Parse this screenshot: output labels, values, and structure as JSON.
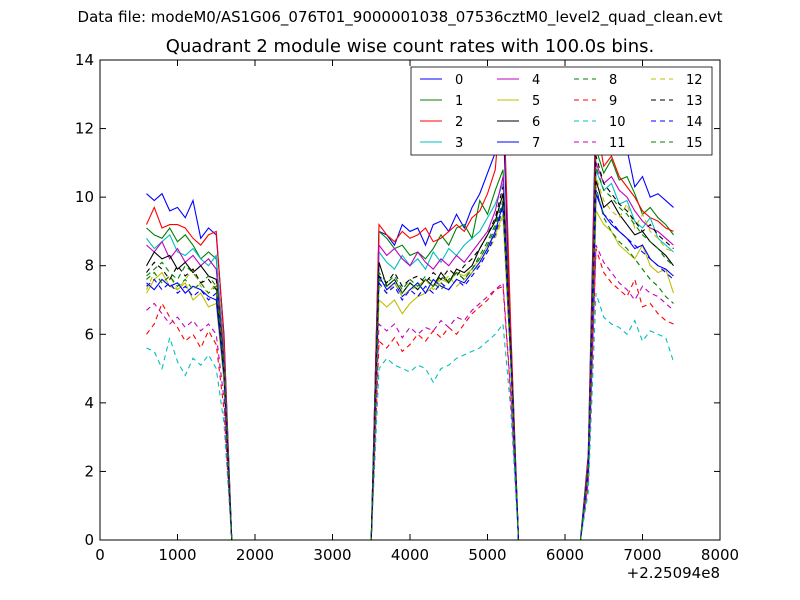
{
  "figure": {
    "suptitle": "Data file: modeM0/AS1G06_076T01_9000001038_07536cztM0_level2_quad_clean.evt",
    "title": "Quadrant 2 module wise count rates with 100.0s bins.",
    "x_offset_label": "+2.25094e8"
  },
  "chart_data": {
    "type": "line",
    "title": "Quadrant 2 module wise count rates with 100.0s bins.",
    "xlabel": "",
    "ylabel": "",
    "xlim": [
      0,
      8000
    ],
    "ylim": [
      0,
      14
    ],
    "xticks": [
      0,
      1000,
      2000,
      3000,
      4000,
      5000,
      6000,
      7000,
      8000
    ],
    "yticks": [
      0,
      2,
      4,
      6,
      8,
      10,
      12,
      14
    ],
    "grid": false,
    "legend": "top-right",
    "x": [
      600,
      700,
      800,
      900,
      1000,
      1100,
      1200,
      1300,
      1400,
      1500,
      1600,
      1700,
      1800,
      1900,
      2000,
      2100,
      2200,
      2300,
      2400,
      2500,
      2600,
      2700,
      2800,
      2900,
      3000,
      3100,
      3200,
      3300,
      3400,
      3500,
      3600,
      3700,
      3800,
      3900,
      4000,
      4100,
      4200,
      4300,
      4400,
      4500,
      4600,
      4700,
      4800,
      4900,
      5000,
      5100,
      5200,
      5300,
      5400,
      5500,
      5600,
      5700,
      5800,
      5900,
      6000,
      6100,
      6200,
      6300,
      6400,
      6500,
      6600,
      6700,
      6800,
      6900,
      7000,
      7100,
      7200,
      7300,
      7400
    ],
    "series": [
      {
        "name": "0",
        "color": "#0000ff",
        "dash": "solid",
        "values": [
          10.1,
          9.9,
          10.1,
          9.6,
          9.7,
          9.4,
          9.9,
          8.8,
          9.1,
          8.9,
          6.0,
          0,
          0,
          0,
          0,
          0,
          0,
          0,
          0,
          0,
          0,
          0,
          0,
          0,
          0,
          0,
          0,
          0,
          0,
          0,
          9.0,
          8.9,
          8.6,
          9.2,
          9.0,
          9.1,
          8.6,
          9.2,
          9.3,
          9.0,
          9.5,
          9.1,
          9.7,
          10.1,
          10.7,
          11.3,
          12.4,
          6.0,
          0,
          0,
          0,
          0,
          0,
          0,
          0,
          0,
          0,
          2.5,
          12.9,
          11.3,
          11.6,
          11.4,
          11.4,
          10.3,
          10.6,
          10.0,
          10.1,
          9.9,
          9.7
        ]
      },
      {
        "name": "1",
        "color": "#008000",
        "dash": "solid",
        "values": [
          9.1,
          8.9,
          8.8,
          9.1,
          8.7,
          8.9,
          8.6,
          8.2,
          8.4,
          8.2,
          5.5,
          0,
          0,
          0,
          0,
          0,
          0,
          0,
          0,
          0,
          0,
          0,
          0,
          0,
          0,
          0,
          0,
          0,
          0,
          0,
          9.0,
          8.8,
          8.5,
          8.6,
          8.3,
          8.4,
          8.2,
          8.5,
          8.9,
          8.6,
          9.1,
          9.2,
          8.8,
          9.9,
          9.5,
          10.2,
          10.8,
          5.8,
          0,
          0,
          0,
          0,
          0,
          0,
          0,
          0,
          0,
          2.3,
          11.4,
          10.7,
          11.1,
          10.5,
          10.6,
          10.1,
          9.5,
          9.7,
          9.4,
          9.2,
          8.9
        ]
      },
      {
        "name": "2",
        "color": "#ff0000",
        "dash": "solid",
        "values": [
          9.2,
          9.7,
          9.1,
          9.2,
          9.2,
          9.1,
          8.8,
          8.6,
          8.9,
          9.0,
          5.9,
          0,
          0,
          0,
          0,
          0,
          0,
          0,
          0,
          0,
          0,
          0,
          0,
          0,
          0,
          0,
          0,
          0,
          0,
          0,
          9.2,
          8.9,
          8.7,
          9.0,
          8.8,
          8.9,
          9.1,
          8.7,
          8.8,
          9.0,
          9.2,
          9.0,
          9.4,
          9.6,
          10.1,
          10.8,
          13.5,
          6.2,
          0,
          0,
          0,
          0,
          0,
          0,
          0,
          0,
          0,
          2.4,
          12.2,
          10.9,
          11.2,
          10.6,
          10.3,
          10.0,
          9.6,
          9.4,
          9.3,
          9.1,
          9.0
        ]
      },
      {
        "name": "3",
        "color": "#00bfbf",
        "dash": "solid",
        "values": [
          8.8,
          8.5,
          8.7,
          8.9,
          8.4,
          8.3,
          8.5,
          8.2,
          8.0,
          8.3,
          5.4,
          0,
          0,
          0,
          0,
          0,
          0,
          0,
          0,
          0,
          0,
          0,
          0,
          0,
          0,
          0,
          0,
          0,
          0,
          0,
          8.4,
          8.1,
          7.9,
          8.3,
          8.0,
          8.2,
          7.9,
          8.4,
          8.1,
          8.5,
          8.3,
          8.6,
          8.8,
          9.0,
          9.4,
          9.8,
          10.4,
          5.6,
          0,
          0,
          0,
          0,
          0,
          0,
          0,
          0,
          0,
          2.2,
          10.8,
          10.2,
          10.4,
          9.8,
          9.9,
          9.3,
          9.1,
          9.4,
          8.8,
          8.6,
          8.4
        ]
      },
      {
        "name": "4",
        "color": "#bf00bf",
        "dash": "solid",
        "values": [
          8.6,
          8.4,
          8.7,
          8.2,
          8.5,
          8.1,
          8.3,
          8.0,
          8.2,
          7.9,
          5.3,
          0,
          0,
          0,
          0,
          0,
          0,
          0,
          0,
          0,
          0,
          0,
          0,
          0,
          0,
          0,
          0,
          0,
          0,
          0,
          8.6,
          8.3,
          8.5,
          8.2,
          8.0,
          8.4,
          8.1,
          7.9,
          8.2,
          8.0,
          8.3,
          8.1,
          8.4,
          8.7,
          9.0,
          9.6,
          10.6,
          5.7,
          0,
          0,
          0,
          0,
          0,
          0,
          0,
          0,
          0,
          2.2,
          11.0,
          10.4,
          10.6,
          10.2,
          10.0,
          9.6,
          9.3,
          9.1,
          9.0,
          8.8,
          8.6
        ]
      },
      {
        "name": "5",
        "color": "#bfbf00",
        "dash": "solid",
        "values": [
          7.2,
          7.6,
          7.8,
          7.4,
          7.3,
          7.5,
          7.0,
          7.2,
          6.8,
          6.9,
          4.6,
          0,
          0,
          0,
          0,
          0,
          0,
          0,
          0,
          0,
          0,
          0,
          0,
          0,
          0,
          0,
          0,
          0,
          0,
          0,
          7.0,
          6.8,
          7.0,
          6.6,
          6.9,
          7.1,
          7.2,
          7.4,
          7.6,
          7.5,
          7.8,
          7.7,
          7.9,
          8.2,
          8.6,
          8.9,
          9.5,
          5.2,
          0,
          0,
          0,
          0,
          0,
          0,
          0,
          0,
          0,
          1.9,
          9.6,
          9.2,
          9.0,
          8.6,
          8.4,
          8.2,
          8.6,
          8.0,
          7.8,
          7.9,
          7.2
        ]
      },
      {
        "name": "6",
        "color": "#000000",
        "dash": "solid",
        "values": [
          8.0,
          8.4,
          8.2,
          8.3,
          7.9,
          8.1,
          7.8,
          8.0,
          7.7,
          7.6,
          5.1,
          0,
          0,
          0,
          0,
          0,
          0,
          0,
          0,
          0,
          0,
          0,
          0,
          0,
          0,
          0,
          0,
          0,
          0,
          0,
          8.1,
          7.4,
          7.6,
          7.2,
          7.5,
          7.3,
          7.6,
          7.4,
          7.8,
          7.5,
          7.9,
          7.8,
          8.0,
          8.5,
          8.9,
          9.3,
          10.1,
          5.5,
          0,
          0,
          0,
          0,
          0,
          0,
          0,
          0,
          0,
          2.1,
          10.5,
          9.7,
          9.9,
          9.5,
          9.2,
          8.9,
          9.0,
          8.7,
          8.5,
          8.3,
          8.0
        ]
      },
      {
        "name": "7",
        "color": "#0000ff",
        "dash": "solid",
        "values": [
          7.5,
          7.3,
          7.6,
          7.4,
          7.5,
          7.2,
          7.4,
          7.3,
          7.1,
          7.0,
          4.8,
          0,
          0,
          0,
          0,
          0,
          0,
          0,
          0,
          0,
          0,
          0,
          0,
          0,
          0,
          0,
          0,
          0,
          0,
          0,
          7.7,
          7.3,
          7.5,
          7.1,
          7.3,
          7.5,
          7.2,
          7.6,
          7.4,
          7.3,
          7.6,
          7.5,
          7.8,
          8.1,
          8.5,
          9.0,
          9.8,
          5.3,
          0,
          0,
          0,
          0,
          0,
          0,
          0,
          0,
          0,
          2.0,
          10.1,
          9.5,
          9.2,
          9.0,
          8.8,
          8.5,
          8.6,
          8.2,
          8.0,
          7.9,
          7.7
        ]
      },
      {
        "name": "8",
        "color": "#008000",
        "dash": "dash",
        "values": [
          7.7,
          7.9,
          8.1,
          7.8,
          7.6,
          8.0,
          7.8,
          7.5,
          7.7,
          7.4,
          5.0,
          0,
          0,
          0,
          0,
          0,
          0,
          0,
          0,
          0,
          0,
          0,
          0,
          0,
          0,
          0,
          0,
          0,
          0,
          0,
          7.8,
          7.5,
          7.7,
          7.3,
          7.6,
          7.4,
          7.7,
          7.5,
          7.3,
          7.6,
          7.8,
          7.6,
          7.9,
          8.3,
          8.7,
          9.2,
          9.9,
          5.4,
          0,
          0,
          0,
          0,
          0,
          0,
          0,
          0,
          0,
          2.1,
          10.3,
          9.4,
          9.0,
          8.7,
          8.5,
          8.2,
          7.9,
          7.6,
          7.4,
          7.1,
          6.9
        ]
      },
      {
        "name": "9",
        "color": "#ff0000",
        "dash": "dash",
        "values": [
          6.0,
          6.3,
          6.9,
          6.5,
          6.2,
          5.8,
          6.0,
          5.6,
          6.1,
          5.7,
          3.8,
          0,
          0,
          0,
          0,
          0,
          0,
          0,
          0,
          0,
          0,
          0,
          0,
          0,
          0,
          0,
          0,
          0,
          0,
          0,
          5.8,
          5.6,
          5.9,
          5.5,
          5.7,
          6.0,
          5.8,
          6.1,
          5.9,
          6.2,
          6.0,
          6.3,
          6.6,
          6.8,
          7.0,
          7.3,
          7.4,
          4.2,
          0,
          0,
          0,
          0,
          0,
          0,
          0,
          0,
          0,
          1.6,
          8.5,
          7.8,
          7.5,
          7.3,
          7.1,
          7.6,
          6.8,
          6.9,
          6.6,
          6.4,
          6.3
        ]
      },
      {
        "name": "10",
        "color": "#00bfbf",
        "dash": "dash",
        "values": [
          5.6,
          5.5,
          5.0,
          5.9,
          5.2,
          4.8,
          5.3,
          5.1,
          5.4,
          5.0,
          3.4,
          0,
          0,
          0,
          0,
          0,
          0,
          0,
          0,
          0,
          0,
          0,
          0,
          0,
          0,
          0,
          0,
          0,
          0,
          0,
          5.0,
          5.3,
          5.1,
          5.0,
          4.9,
          5.1,
          5.0,
          4.6,
          5.0,
          5.1,
          5.3,
          5.4,
          5.5,
          5.6,
          5.8,
          6.0,
          6.3,
          3.8,
          0,
          0,
          0,
          0,
          0,
          0,
          0,
          0,
          0,
          1.4,
          7.2,
          6.5,
          6.3,
          6.2,
          6.0,
          6.4,
          5.8,
          6.1,
          6.0,
          5.9,
          5.2
        ]
      },
      {
        "name": "11",
        "color": "#bf00bf",
        "dash": "dash",
        "values": [
          6.7,
          6.9,
          6.6,
          6.3,
          6.5,
          6.2,
          6.4,
          6.1,
          6.3,
          6.0,
          4.1,
          0,
          0,
          0,
          0,
          0,
          0,
          0,
          0,
          0,
          0,
          0,
          0,
          0,
          0,
          0,
          0,
          0,
          0,
          0,
          6.3,
          6.1,
          6.3,
          5.9,
          6.2,
          6.0,
          6.2,
          6.1,
          6.4,
          6.2,
          6.5,
          6.4,
          6.7,
          6.9,
          7.1,
          7.3,
          7.5,
          4.3,
          0,
          0,
          0,
          0,
          0,
          0,
          0,
          0,
          0,
          1.7,
          8.6,
          8.1,
          7.8,
          7.5,
          7.3,
          7.0,
          7.4,
          7.2,
          7.1,
          6.9,
          6.7
        ]
      },
      {
        "name": "12",
        "color": "#bfbf00",
        "dash": "dash",
        "values": [
          7.3,
          7.8,
          7.5,
          7.7,
          7.3,
          7.6,
          7.9,
          7.4,
          7.2,
          7.5,
          5.0,
          0,
          0,
          0,
          0,
          0,
          0,
          0,
          0,
          0,
          0,
          0,
          0,
          0,
          0,
          0,
          0,
          0,
          0,
          0,
          7.4,
          7.2,
          7.5,
          7.1,
          7.3,
          7.4,
          7.6,
          7.3,
          7.5,
          7.7,
          7.4,
          7.6,
          7.8,
          8.0,
          8.4,
          8.8,
          9.4,
          5.1,
          0,
          0,
          0,
          0,
          0,
          0,
          0,
          0,
          0,
          2.0,
          10.6,
          9.9,
          9.6,
          9.4,
          9.8,
          9.1,
          9.5,
          9.0,
          8.8,
          8.5,
          8.4
        ]
      },
      {
        "name": "13",
        "color": "#000000",
        "dash": "dash",
        "values": [
          7.8,
          8.1,
          7.9,
          7.6,
          8.0,
          7.7,
          7.9,
          7.5,
          7.6,
          7.3,
          4.9,
          0,
          0,
          0,
          0,
          0,
          0,
          0,
          0,
          0,
          0,
          0,
          0,
          0,
          0,
          0,
          0,
          0,
          0,
          0,
          7.7,
          7.5,
          7.8,
          7.4,
          7.6,
          7.7,
          7.5,
          7.8,
          7.6,
          7.9,
          7.7,
          8.0,
          8.2,
          8.5,
          8.9,
          9.4,
          10.3,
          5.5,
          0,
          0,
          0,
          0,
          0,
          0,
          0,
          0,
          0,
          2.1,
          11.2,
          10.4,
          10.1,
          9.8,
          9.6,
          9.3,
          9.0,
          9.2,
          8.9,
          8.7,
          8.5
        ]
      },
      {
        "name": "14",
        "color": "#0000ff",
        "dash": "dash",
        "values": [
          7.4,
          7.6,
          7.3,
          7.5,
          7.2,
          7.4,
          7.1,
          7.3,
          7.0,
          7.2,
          4.8,
          0,
          0,
          0,
          0,
          0,
          0,
          0,
          0,
          0,
          0,
          0,
          0,
          0,
          0,
          0,
          0,
          0,
          0,
          0,
          7.5,
          7.2,
          7.4,
          7.0,
          7.3,
          7.1,
          7.4,
          7.2,
          7.5,
          7.3,
          7.6,
          7.4,
          7.7,
          8.0,
          8.4,
          8.9,
          9.7,
          5.2,
          0,
          0,
          0,
          0,
          0,
          0,
          0,
          0,
          0,
          2.0,
          10.2,
          9.5,
          9.3,
          9.0,
          8.8,
          8.6,
          8.4,
          8.2,
          8.0,
          7.8,
          7.6
        ]
      },
      {
        "name": "15",
        "color": "#008000",
        "dash": "dash",
        "values": [
          7.6,
          7.8,
          7.5,
          7.7,
          7.4,
          7.6,
          7.3,
          7.5,
          7.2,
          7.4,
          5.0,
          0,
          0,
          0,
          0,
          0,
          0,
          0,
          0,
          0,
          0,
          0,
          0,
          0,
          0,
          0,
          0,
          0,
          0,
          0,
          7.6,
          7.4,
          7.6,
          7.2,
          7.5,
          7.3,
          7.6,
          7.4,
          7.7,
          7.5,
          7.8,
          7.6,
          7.9,
          8.2,
          8.6,
          9.1,
          9.9,
          5.3,
          0,
          0,
          0,
          0,
          0,
          0,
          0,
          0,
          0,
          2.1,
          10.9,
          10.2,
          10.0,
          9.7,
          9.5,
          9.2,
          8.9,
          8.7,
          8.5,
          8.2,
          8.0
        ]
      }
    ]
  }
}
